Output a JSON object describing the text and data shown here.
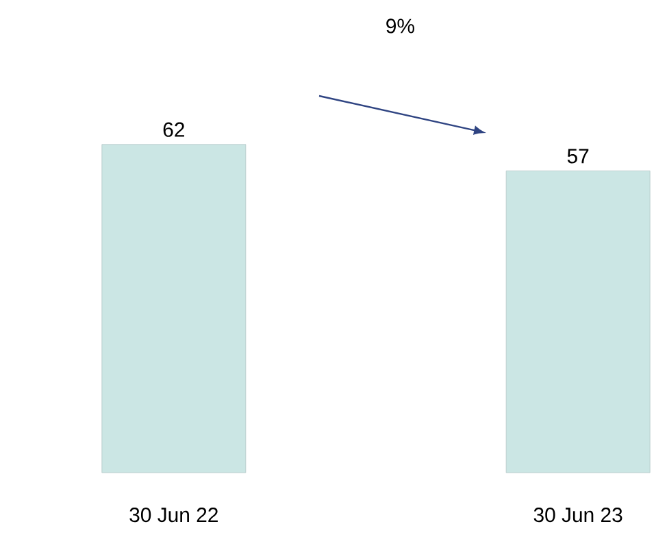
{
  "chart_data": {
    "type": "bar",
    "categories": [
      "30 Jun 22",
      "30 Jun 23"
    ],
    "values": [
      62,
      57
    ],
    "color": "#cbe6e4",
    "data_labels": true,
    "annotations": [
      "9%"
    ]
  }
}
